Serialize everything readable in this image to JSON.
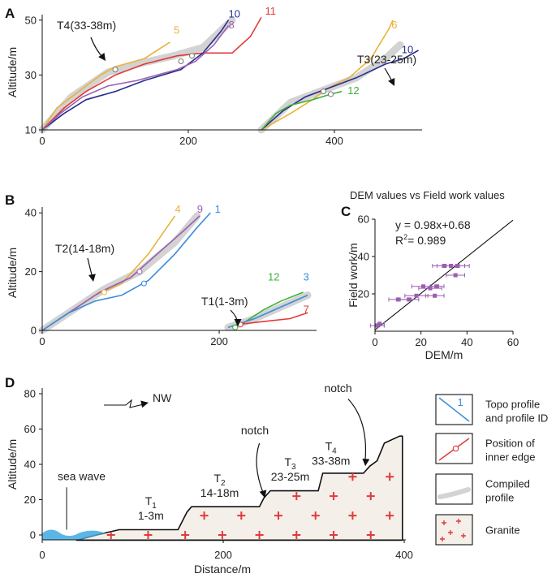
{
  "colors": {
    "orange": "#E8B33A",
    "red": "#E23A3A",
    "navy": "#262F8C",
    "purple": "#9B5FB0",
    "blue": "#3A8DDB",
    "green": "#3FAF3A",
    "gray": "#D3D3D3",
    "granite_fill": "#F5EFE9",
    "granite_cross": "#E23A3A",
    "sea": "#3FA9E0",
    "pt_purple": "#9B5FB0"
  },
  "chart_data": [
    {
      "id": "A",
      "type": "line",
      "panel_label": "A",
      "xlim": [
        0,
        520
      ],
      "ylim": [
        10,
        52
      ],
      "x_ticks": [
        "0",
        "200",
        "400"
      ],
      "y_ticks": [
        "10",
        "30",
        "50"
      ],
      "ylabel": "Altitude/m",
      "annotations": [
        {
          "text": "T4(33-38m)",
          "x": 100,
          "y": 33
        },
        {
          "text": "T3(23-25m)",
          "x": 390,
          "y": 25
        }
      ],
      "compiled_profiles": [
        [
          [
            0,
            10
          ],
          [
            40,
            22
          ],
          [
            90,
            31
          ],
          [
            130,
            34
          ],
          [
            180,
            37
          ],
          [
            220,
            40
          ],
          [
            260,
            50
          ]
        ],
        [
          [
            300,
            10
          ],
          [
            340,
            20
          ],
          [
            390,
            25
          ],
          [
            430,
            29
          ],
          [
            470,
            36
          ],
          [
            490,
            41
          ]
        ]
      ],
      "series": [
        {
          "name": "5",
          "color_key": "orange",
          "label_at": [
            180,
            45
          ],
          "points": [
            [
              0,
              10
            ],
            [
              20,
              18
            ],
            [
              50,
              24
            ],
            [
              80,
              30
            ],
            [
              100,
              33
            ],
            [
              140,
              36
            ],
            [
              175,
              42
            ]
          ]
        },
        {
          "name": "11",
          "color_key": "red",
          "label_at": [
            305,
            52
          ],
          "points": [
            [
              0,
              10
            ],
            [
              30,
              18
            ],
            [
              60,
              24
            ],
            [
              100,
              30
            ],
            [
              140,
              34
            ],
            [
              185,
              37
            ],
            [
              220,
              38
            ],
            [
              260,
              38
            ],
            [
              285,
              44
            ],
            [
              300,
              51
            ]
          ]
        },
        {
          "name": "10",
          "color_key": "navy",
          "label_at": [
            255,
            51
          ],
          "points": [
            [
              0,
              10
            ],
            [
              30,
              16
            ],
            [
              60,
              21
            ],
            [
              100,
              24
            ],
            [
              140,
              28
            ],
            [
              190,
              32
            ],
            [
              220,
              38
            ],
            [
              245,
              46
            ],
            [
              255,
              50
            ]
          ]
        },
        {
          "name": "8",
          "color_key": "purple",
          "label_at": [
            255,
            47
          ],
          "points": [
            [
              0,
              10
            ],
            [
              25,
              16
            ],
            [
              55,
              22
            ],
            [
              90,
              26
            ],
            [
              130,
              28
            ],
            [
              185,
              32
            ],
            [
              210,
              35
            ],
            [
              235,
              41
            ],
            [
              255,
              48
            ]
          ]
        },
        {
          "name": "6",
          "color_key": "orange",
          "label_at": [
            478,
            47
          ],
          "points": [
            [
              300,
              10
            ],
            [
              340,
              16
            ],
            [
              370,
              21
            ],
            [
              390,
              25
            ],
            [
              420,
              29
            ],
            [
              450,
              36
            ],
            [
              475,
              47
            ],
            [
              480,
              50
            ]
          ]
        },
        {
          "name": "10",
          "color_key": "navy",
          "label_at": [
            492,
            38
          ],
          "points": [
            [
              300,
              10
            ],
            [
              330,
              17
            ],
            [
              360,
              22
            ],
            [
              390,
              25
            ],
            [
              430,
              29
            ],
            [
              470,
              34
            ],
            [
              495,
              36
            ],
            [
              515,
              39
            ]
          ]
        },
        {
          "name": "12",
          "color_key": "green",
          "label_at": [
            418,
            23
          ],
          "points": [
            [
              300,
              10
            ],
            [
              320,
              16
            ],
            [
              340,
              19
            ],
            [
              370,
              21
            ],
            [
              395,
              23
            ],
            [
              410,
              24
            ]
          ]
        }
      ],
      "inner_edges": [
        [
          100,
          32
        ],
        [
          190,
          35
        ],
        [
          205,
          37
        ],
        [
          385,
          24
        ],
        [
          395,
          23
        ]
      ]
    },
    {
      "id": "B",
      "type": "line",
      "panel_label": "B",
      "xlim": [
        0,
        310
      ],
      "ylim": [
        0,
        42
      ],
      "x_ticks": [
        "0",
        "200"
      ],
      "y_ticks": [
        "0",
        "20",
        "40"
      ],
      "ylabel": "Altitude/m",
      "annotations": [
        {
          "text": "T2(14-18m)",
          "x": 70,
          "y": 14
        },
        {
          "text": "T1(1-3m)",
          "x": 225,
          "y": 2
        }
      ],
      "compiled_profiles": [
        [
          [
            0,
            0
          ],
          [
            40,
            8
          ],
          [
            70,
            14
          ],
          [
            110,
            20
          ],
          [
            150,
            30
          ],
          [
            175,
            39
          ]
        ],
        [
          [
            210,
            1
          ],
          [
            240,
            4
          ],
          [
            270,
            8
          ],
          [
            300,
            12
          ]
        ]
      ],
      "series": [
        {
          "name": "4",
          "color_key": "orange",
          "label_at": [
            150,
            40
          ],
          "points": [
            [
              0,
              0
            ],
            [
              30,
              6
            ],
            [
              60,
              12
            ],
            [
              90,
              16
            ],
            [
              120,
              26
            ],
            [
              150,
              39
            ]
          ]
        },
        {
          "name": "9",
          "color_key": "purple",
          "label_at": [
            175,
            40
          ],
          "points": [
            [
              0,
              0
            ],
            [
              30,
              6
            ],
            [
              65,
              13
            ],
            [
              100,
              18
            ],
            [
              130,
              26
            ],
            [
              160,
              34
            ],
            [
              178,
              39
            ]
          ]
        },
        {
          "name": "1",
          "color_key": "blue",
          "label_at": [
            195,
            40
          ],
          "points": [
            [
              0,
              0
            ],
            [
              30,
              6
            ],
            [
              60,
              10
            ],
            [
              90,
              12
            ],
            [
              120,
              17
            ],
            [
              150,
              26
            ],
            [
              175,
              35
            ],
            [
              190,
              40
            ]
          ]
        },
        {
          "name": "12",
          "color_key": "green",
          "label_at": [
            255,
            17
          ],
          "points": [
            [
              215,
              1
            ],
            [
              230,
              3
            ],
            [
              250,
              7
            ],
            [
              270,
              10
            ],
            [
              295,
              13
            ]
          ]
        },
        {
          "name": "3",
          "color_key": "blue",
          "label_at": [
            295,
            17
          ],
          "points": [
            [
              210,
              1
            ],
            [
              240,
              4
            ],
            [
              270,
              8
            ],
            [
              300,
              12
            ]
          ]
        },
        {
          "name": "7",
          "color_key": "red",
          "label_at": [
            295,
            6
          ],
          "points": [
            [
              220,
              2
            ],
            [
              250,
              3
            ],
            [
              280,
              4
            ],
            [
              300,
              6
            ]
          ]
        }
      ],
      "inner_edges": [
        [
          70,
          13
        ],
        [
          110,
          20
        ],
        [
          115,
          16
        ],
        [
          218,
          1
        ],
        [
          224,
          2
        ]
      ]
    },
    {
      "id": "C",
      "type": "scatter",
      "panel_label": "C",
      "title": "DEM values vs Field work values",
      "xlim": [
        0,
        60
      ],
      "ylim": [
        0,
        60
      ],
      "x_ticks": [
        "0",
        "20",
        "40",
        "60"
      ],
      "y_ticks": [
        "20",
        "40",
        "60"
      ],
      "xlabel": "DEM/m",
      "ylabel": "Field work/m",
      "equation": "y = 0.98x+0.68",
      "r2_label": "R",
      "r2_sup": "2",
      "r2_value": "= 0.989",
      "fit": {
        "slope": 0.98,
        "intercept": 0.68
      },
      "points": [
        {
          "x": 1,
          "y": 3,
          "xerr": 3
        },
        {
          "x": 2,
          "y": 4,
          "xerr": 2
        },
        {
          "x": 10,
          "y": 17,
          "xerr": 4
        },
        {
          "x": 15,
          "y": 17,
          "xerr": 4
        },
        {
          "x": 18,
          "y": 19,
          "xerr": 5
        },
        {
          "x": 21,
          "y": 24,
          "xerr": 5
        },
        {
          "x": 24,
          "y": 23,
          "xerr": 5
        },
        {
          "x": 26,
          "y": 19,
          "xerr": 4
        },
        {
          "x": 27,
          "y": 24,
          "xerr": 3
        },
        {
          "x": 30,
          "y": 35,
          "xerr": 5
        },
        {
          "x": 33,
          "y": 35,
          "xerr": 6
        },
        {
          "x": 35,
          "y": 30,
          "xerr": 4
        },
        {
          "x": 36,
          "y": 35,
          "xerr": 5
        }
      ]
    },
    {
      "id": "D",
      "type": "area",
      "panel_label": "D",
      "xlim": [
        0,
        400
      ],
      "ylim": [
        -3,
        85
      ],
      "x_ticks": [
        "0",
        "200",
        "400"
      ],
      "y_ticks": [
        "0",
        "20",
        "40",
        "60",
        "80"
      ],
      "xlabel": "Distance/m",
      "ylabel": "Altitude/m",
      "direction": "NW",
      "sea_label": "sea wave",
      "profile": [
        [
          38,
          -3
        ],
        [
          60,
          0
        ],
        [
          85,
          3
        ],
        [
          150,
          3
        ],
        [
          160,
          13
        ],
        [
          165,
          16
        ],
        [
          240,
          16
        ],
        [
          245,
          21
        ],
        [
          252,
          25
        ],
        [
          305,
          25
        ],
        [
          310,
          35
        ],
        [
          355,
          35
        ],
        [
          362,
          39
        ],
        [
          370,
          42
        ],
        [
          378,
          52
        ],
        [
          395,
          56
        ],
        [
          398,
          56
        ],
        [
          398,
          -3
        ]
      ],
      "terrace_labels": [
        {
          "name": "T",
          "sub": "1",
          "range": "1-3m",
          "x": 120,
          "y": 17
        },
        {
          "name": "T",
          "sub": "2",
          "range": "14-18m",
          "x": 196,
          "y": 30
        },
        {
          "name": "T",
          "sub": "3",
          "range": "23-25m",
          "x": 274,
          "y": 39
        },
        {
          "name": "T",
          "sub": "4",
          "range": "33-38m",
          "x": 319,
          "y": 48
        }
      ],
      "notch_labels": [
        {
          "text": "notch",
          "x": 235,
          "y": 57
        },
        {
          "text": "notch",
          "x": 327,
          "y": 81
        }
      ]
    }
  ],
  "legend": {
    "items": [
      {
        "kind": "topo",
        "id_text": "1",
        "label": [
          "Topo profile",
          "and profile ID"
        ]
      },
      {
        "kind": "inner",
        "label": [
          "Position of",
          "inner edge"
        ]
      },
      {
        "kind": "compiled",
        "label": [
          "Compiled",
          "profile"
        ]
      },
      {
        "kind": "granite",
        "label": [
          "Granite"
        ]
      }
    ]
  }
}
